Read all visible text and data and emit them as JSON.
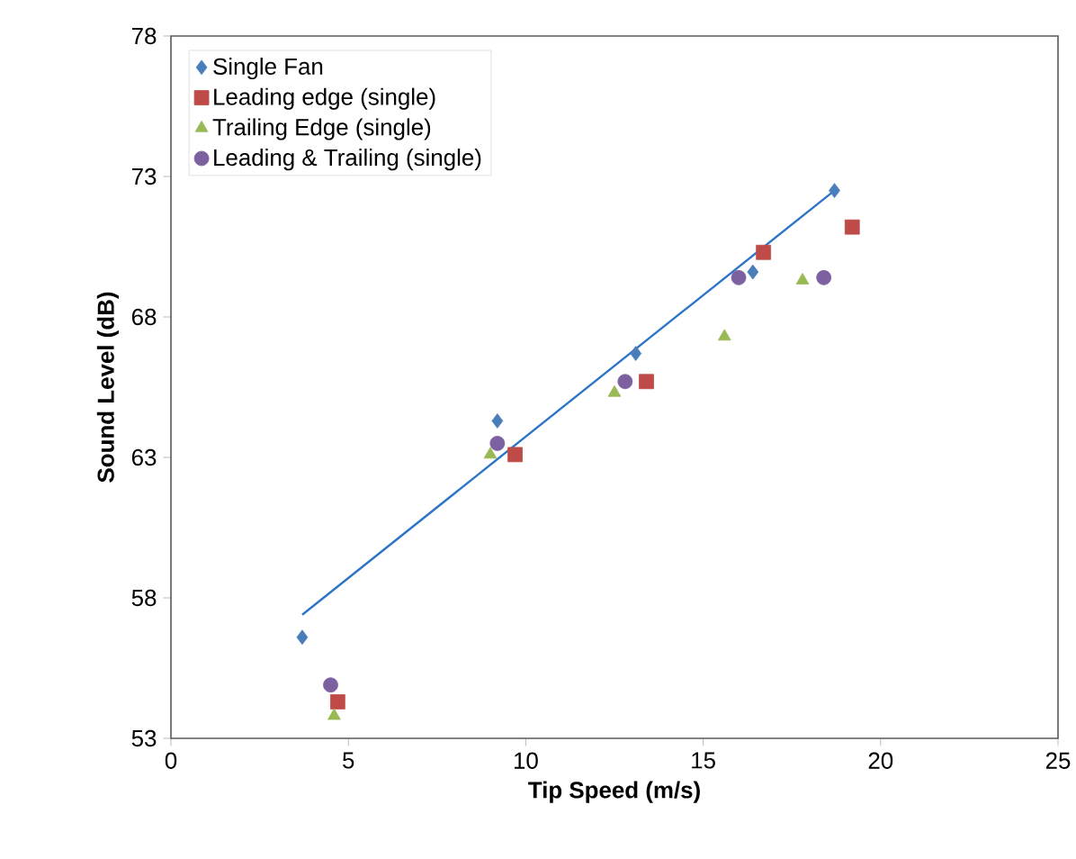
{
  "chart_data": {
    "type": "scatter",
    "xlabel": "Tip Speed (m/s)",
    "ylabel": "Sound Level (dB)",
    "xlim": [
      0,
      25
    ],
    "ylim": [
      53,
      78
    ],
    "xticks": [
      0,
      5,
      10,
      15,
      20,
      25
    ],
    "yticks": [
      53,
      58,
      63,
      68,
      73,
      78
    ],
    "grid": false,
    "legend": "top left",
    "series": [
      {
        "name": "Single Fan",
        "color": "#4a7ebb",
        "marker": "diamond",
        "x": [
          3.7,
          9.2,
          13.1,
          16.4,
          18.7
        ],
        "values": [
          56.6,
          64.3,
          66.7,
          69.6,
          72.5
        ]
      },
      {
        "name": "Leading edge (single)",
        "color": "#be4b48",
        "marker": "square",
        "x": [
          4.7,
          9.7,
          13.4,
          16.7,
          19.2
        ],
        "values": [
          54.3,
          63.1,
          65.7,
          70.3,
          71.2
        ]
      },
      {
        "name": "Trailing Edge (single)",
        "color": "#98b954",
        "marker": "triangle",
        "x": [
          4.6,
          9.0,
          12.5,
          15.6,
          17.8
        ],
        "values": [
          53.8,
          63.1,
          65.3,
          67.3,
          69.3
        ]
      },
      {
        "name": "Leading & Trailing (single)",
        "color": "#7d60a0",
        "marker": "circle",
        "x": [
          4.5,
          9.2,
          12.8,
          16.0,
          18.4
        ],
        "values": [
          54.9,
          63.5,
          65.7,
          69.4,
          69.4
        ]
      },
      {
        "type": "line",
        "color": "#2e75c8",
        "marker": "none",
        "x": [
          3.7,
          18.7
        ],
        "values": [
          57.4,
          72.5
        ]
      }
    ]
  }
}
